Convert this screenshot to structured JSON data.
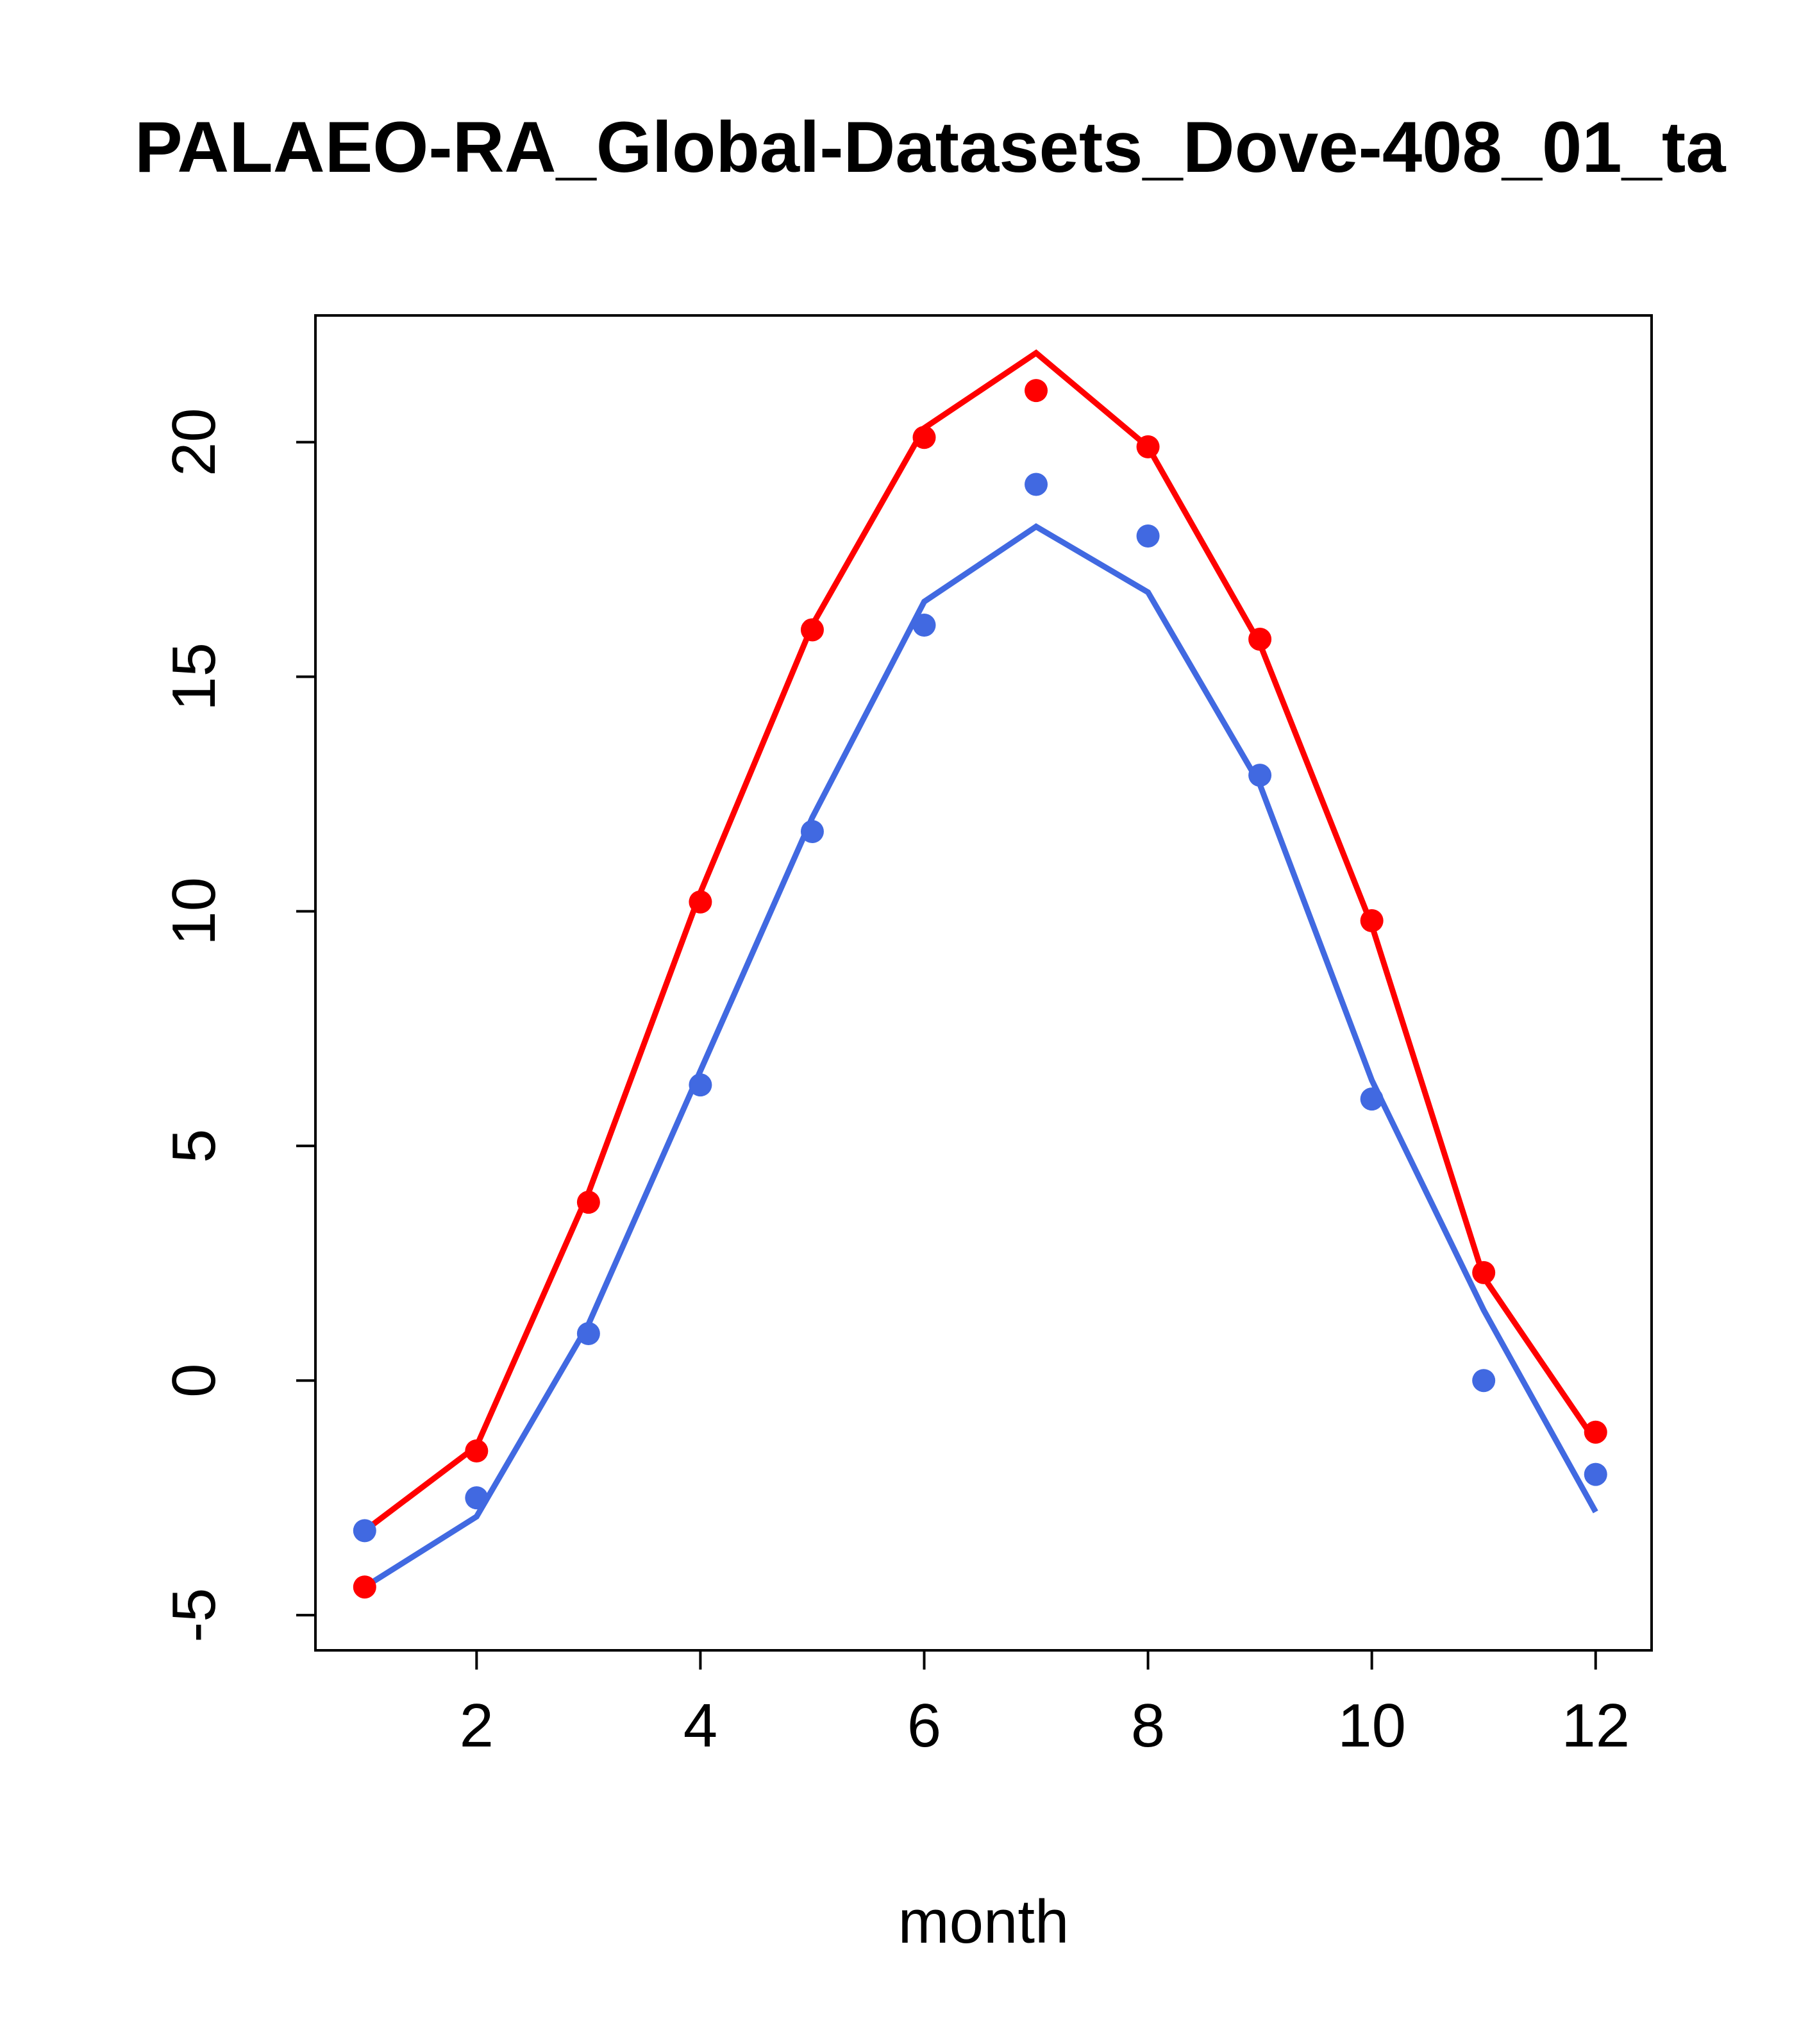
{
  "title": "PALAEO-RA_Global-Datasets_Dove-408_01_ta",
  "colors": {
    "red": "#FF0000",
    "blue": "#4169E1",
    "axis": "#000000",
    "background": "#FFFFFF"
  },
  "chart_data": {
    "type": "line",
    "title": "PALAEO-RA_Global-Datasets_Dove-408_01_ta",
    "xlabel": "month",
    "ylabel": "",
    "x": [
      1,
      2,
      3,
      4,
      5,
      6,
      7,
      8,
      9,
      10,
      11,
      12
    ],
    "xticks": [
      2,
      4,
      6,
      8,
      10,
      12
    ],
    "yticks": [
      -5,
      0,
      5,
      10,
      15,
      20
    ],
    "xlim": [
      0.56,
      12.5
    ],
    "ylim": [
      -5.75,
      22.7
    ],
    "grid": false,
    "legend": "none",
    "series": [
      {
        "name": "red-line",
        "draw": "line",
        "color": "#FF0000",
        "values": [
          -3.2,
          -1.4,
          4.0,
          10.4,
          16.1,
          20.3,
          21.9,
          19.9,
          15.7,
          9.7,
          2.2,
          -1.3
        ]
      },
      {
        "name": "blue-line",
        "draw": "line",
        "color": "#4169E1",
        "values": [
          -4.4,
          -2.9,
          1.2,
          6.6,
          12.0,
          16.6,
          18.2,
          16.8,
          12.7,
          6.4,
          1.5,
          -2.8
        ]
      },
      {
        "name": "red-points",
        "draw": "points",
        "color": "#FF0000",
        "values": [
          -4.4,
          -1.5,
          3.8,
          10.2,
          16.0,
          20.1,
          21.1,
          19.9,
          15.8,
          9.8,
          2.3,
          -1.1
        ]
      },
      {
        "name": "blue-points",
        "draw": "points",
        "color": "#4169E1",
        "values": [
          -3.2,
          -2.5,
          1.0,
          6.3,
          11.7,
          16.1,
          19.1,
          18.0,
          12.9,
          6.0,
          0.0,
          -2.0
        ]
      }
    ]
  }
}
